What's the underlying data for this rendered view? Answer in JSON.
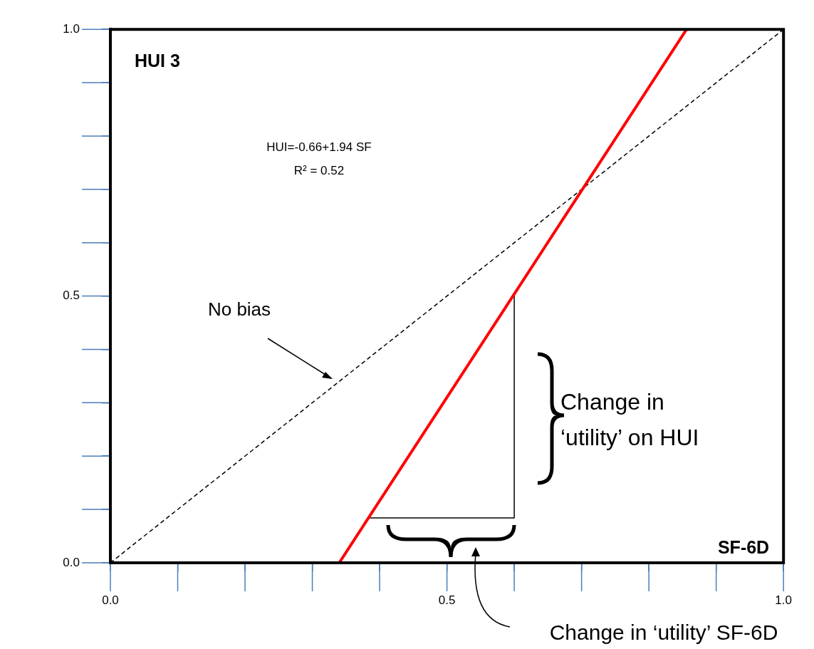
{
  "chart_data": {
    "type": "line",
    "xlabel": "SF-6D",
    "ylabel": "HUI 3",
    "xlim": [
      0,
      1
    ],
    "ylim": [
      0,
      1
    ],
    "xticks": [
      {
        "value": 0,
        "label": "0.0"
      },
      {
        "value": 0.1,
        "label": null
      },
      {
        "value": 0.2,
        "label": null
      },
      {
        "value": 0.3,
        "label": null
      },
      {
        "value": 0.4,
        "label": null
      },
      {
        "value": 0.5,
        "label": "0.5"
      },
      {
        "value": 0.6,
        "label": null
      },
      {
        "value": 0.7,
        "label": null
      },
      {
        "value": 0.8,
        "label": null
      },
      {
        "value": 0.9,
        "label": null
      },
      {
        "value": 1,
        "label": "1.0"
      }
    ],
    "yticks": [
      {
        "value": 0,
        "label": "0.0"
      },
      {
        "value": 0.1,
        "label": null
      },
      {
        "value": 0.2,
        "label": null
      },
      {
        "value": 0.3,
        "label": null
      },
      {
        "value": 0.4,
        "label": null
      },
      {
        "value": 0.5,
        "label": "0.5"
      },
      {
        "value": 0.6,
        "label": null
      },
      {
        "value": 0.7,
        "label": null
      },
      {
        "value": 0.8,
        "label": null
      },
      {
        "value": 0.9,
        "label": null
      },
      {
        "value": 1,
        "label": "1.0"
      }
    ],
    "series": [
      {
        "color": "#ff0000",
        "x": [
          0.34,
          0.856
        ],
        "values": [
          0,
          1
        ]
      },
      {
        "color": "#000000",
        "x": [
          0,
          1
        ],
        "values": [
          0,
          1
        ],
        "line_style": "dashed"
      },
      {
        "color": "#000000",
        "x": [
          0.383,
          0.6,
          0.6
        ],
        "values": [
          0.084,
          0.084,
          0.504
        ]
      }
    ],
    "marker": "none",
    "grid": false,
    "legend": false,
    "annotations": [
      "HUI=-0.66+1.94 SF",
      "R² = 0.52",
      "No bias",
      "Change in ‘utility’ on HUI",
      "Change in ‘utility’ SF-6D"
    ]
  }
}
